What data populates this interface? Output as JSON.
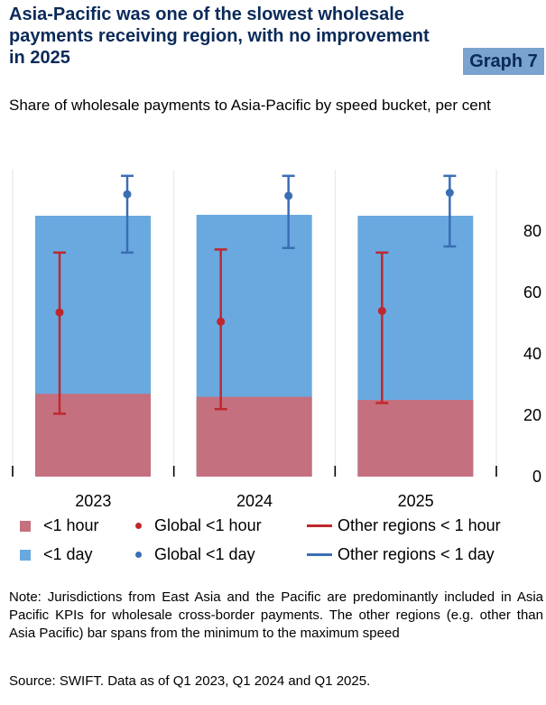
{
  "header": {
    "title": "Asia-Pacific was one of the slowest wholesale payments receiving region, with no improvement in 2025",
    "graph_tag": "Graph 7",
    "subtitle": "Share of wholesale payments to Asia-Pacific by speed bucket, per cent"
  },
  "colors": {
    "bar_1hour": "#c4707f",
    "bar_1day": "#69a9e0",
    "global_1hour": "#c0272d",
    "global_1day": "#3a6eb5",
    "other_1hour": "#c0272d",
    "other_1day": "#3a6eb5",
    "title": "#0a2a59",
    "graph_tag_bg": "#7aa3cf"
  },
  "chart_data": {
    "type": "bar",
    "stacked": false,
    "categories": [
      "2023",
      "2024",
      "2025"
    ],
    "series": [
      {
        "name": "<1 hour",
        "kind": "bar",
        "values": [
          27,
          26,
          25
        ]
      },
      {
        "name": "<1 day",
        "kind": "bar",
        "values": [
          85,
          85.3,
          85
        ]
      },
      {
        "name": "Global <1 hour",
        "kind": "dot",
        "values": [
          53.5,
          50.5,
          54
        ]
      },
      {
        "name": "Global <1 day",
        "kind": "dot",
        "values": [
          92,
          91.5,
          92.5
        ]
      },
      {
        "name": "Other regions < 1 hour",
        "kind": "range",
        "min": [
          20.5,
          22,
          24
        ],
        "max": [
          73,
          74,
          73
        ]
      },
      {
        "name": "Other regions < 1 day",
        "kind": "range",
        "min": [
          73,
          74.5,
          75
        ],
        "max": [
          98,
          98,
          98
        ]
      }
    ],
    "y_ticks": [
      "0",
      "20",
      "40",
      "60",
      "80"
    ],
    "ylim": [
      0,
      100
    ],
    "y_axis_side": "right",
    "grid": "vertical panel dividers",
    "legend_position": "bottom"
  },
  "legend": [
    {
      "label": "<1 hour",
      "swatch": "rect",
      "color": "#c4707f"
    },
    {
      "label": "Global <1 hour",
      "swatch": "dot",
      "color": "#c0272d"
    },
    {
      "label": "Other regions < 1 hour",
      "swatch": "line",
      "color": "#c0272d"
    },
    {
      "label": "<1 day",
      "swatch": "rect",
      "color": "#69a9e0"
    },
    {
      "label": "Global <1 day",
      "swatch": "dot",
      "color": "#3a6eb5"
    },
    {
      "label": "Other regions < 1 day",
      "swatch": "line",
      "color": "#3a6eb5"
    }
  ],
  "footer": {
    "note": "Note: Jurisdictions from East Asia and the Pacific are predominantly included in Asia Pacific KPIs for wholesale cross-border payments. The other regions (e.g. other than Asia Pacific) bar spans from the minimum to the maximum speed",
    "source": "Source: SWIFT. Data as of Q1 2023, Q1 2024 and Q1 2025."
  }
}
